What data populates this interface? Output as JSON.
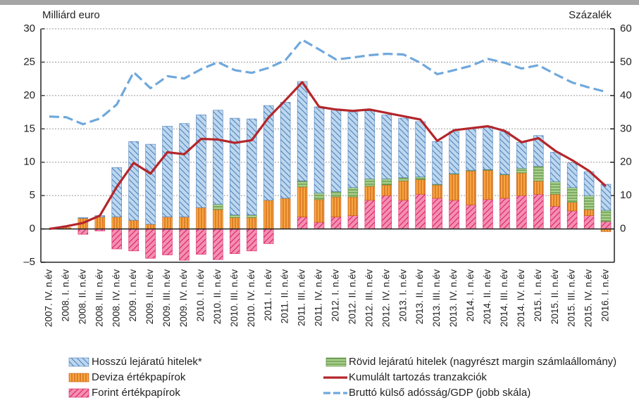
{
  "chart_data": {
    "type": "bar",
    "y_label": "Milliárd euro",
    "y2_label": "Százalék",
    "categories": [
      "2007. IV. n.év",
      "2008. I. n.év",
      "2008. II. n.év",
      "2008. III. n.év",
      "2008. IV. n.év",
      "2009. I. n.év",
      "2009. II. n.év",
      "2009. III. n.év",
      "2009. IV. n.év",
      "2010. I. n.év",
      "2010. II. n.év",
      "2010. III. n.év",
      "2010. IV. n.év",
      "2011. I. n.év",
      "2011. II. n.év",
      "2011. III. n.év",
      "2011. IV. n.év",
      "2012. I. n.év",
      "2012. II. n.év",
      "2012. III. n.év",
      "2012. IV. n.év",
      "2013. I. n.év",
      "2013. II. n.év",
      "2013. III. n.év",
      "2013. IV. n.év",
      "2014. I. n.év",
      "2014. II. n.év",
      "2014. III. n.év",
      "2014. IV. n.év",
      "2015. I. n.év",
      "2015. II. n.év",
      "2015. III. n.év",
      "2015. IV. n.év",
      "2016. I. n.év"
    ],
    "series": [
      {
        "name": "Forint értékpapírok",
        "type": "bar",
        "color": "#f48fb1",
        "values": [
          0,
          0,
          -0.8,
          -0.3,
          -3.0,
          -3.3,
          -4.4,
          -3.9,
          -4.7,
          -3.8,
          -4.6,
          -3.7,
          -3.3,
          -2.2,
          0,
          1.8,
          1.0,
          1.8,
          2.0,
          4.3,
          5.0,
          4.3,
          5.2,
          4.6,
          4.3,
          3.6,
          4.4,
          4.6,
          5.0,
          5.2,
          3.4,
          2.7,
          2.0,
          1.1
        ]
      },
      {
        "name": "Deviza értékpapírok",
        "type": "bar",
        "color": "#f7a541",
        "values": [
          0,
          0.2,
          1.6,
          1.8,
          1.8,
          1.3,
          0.7,
          1.8,
          1.8,
          3.2,
          2.9,
          1.7,
          1.7,
          4.3,
          4.6,
          4.5,
          3.4,
          3.0,
          2.8,
          2.1,
          1.6,
          2.9,
          2.2,
          2.0,
          3.9,
          5.1,
          4.4,
          3.5,
          3.4,
          2.0,
          1.8,
          1.3,
          0.9,
          -0.4
        ]
      },
      {
        "name": "Rövid lejáratú hitelek (nagyrészt margin számlaállomány)",
        "type": "bar",
        "color": "#a9d18e",
        "values": [
          0,
          0,
          0,
          0,
          0,
          0,
          0,
          0,
          0,
          0,
          0.8,
          0.4,
          0.4,
          0,
          0,
          0.9,
          1.0,
          0.8,
          1.4,
          1.1,
          0.9,
          0.5,
          0.4,
          0.1,
          0.1,
          0.1,
          0.1,
          0.1,
          0.7,
          2.2,
          1.9,
          2.2,
          2.1,
          1.7
        ]
      },
      {
        "name": "Hosszú lejáratú hitelek*",
        "type": "bar",
        "color": "#bdd7ee",
        "values": [
          0,
          0,
          0.1,
          0.2,
          7.4,
          11.8,
          12.0,
          13.6,
          14.0,
          13.9,
          14.1,
          14.5,
          14.4,
          14.2,
          14.4,
          14.9,
          12.9,
          12.4,
          11.3,
          10.2,
          9.6,
          8.9,
          8.3,
          6.4,
          6.3,
          6.2,
          6.5,
          6.4,
          3.9,
          4.6,
          4.4,
          3.7,
          3.6,
          3.9
        ]
      },
      {
        "name": "Kumulált tartozás tranzakciók",
        "type": "line",
        "color": "#b3262b",
        "values": [
          0,
          0.4,
          0.9,
          2.0,
          6.3,
          9.9,
          8.3,
          11.5,
          11.2,
          13.5,
          13.4,
          12.9,
          13.3,
          16.7,
          19.3,
          22.0,
          18.3,
          17.9,
          17.7,
          17.9,
          17.4,
          16.9,
          16.4,
          13.2,
          14.8,
          15.1,
          15.4,
          14.7,
          13.0,
          13.6,
          11.7,
          10.3,
          8.7,
          6.4
        ]
      },
      {
        "name": "Bruttó külső adósság/GDP (jobb skála)",
        "type": "line",
        "axis": "y2",
        "dashed": true,
        "color": "#6fa8dc",
        "values": [
          33.7,
          33.5,
          31.4,
          33.1,
          37.3,
          47.0,
          42.2,
          45.8,
          45.1,
          47.9,
          50.0,
          47.6,
          46.8,
          48.3,
          50.6,
          56.7,
          53.8,
          50.8,
          51.4,
          52.1,
          52.5,
          52.3,
          49.8,
          46.4,
          47.6,
          48.9,
          51.0,
          49.8,
          48.1,
          49.1,
          46.4,
          43.9,
          42.4,
          41.1
        ]
      }
    ],
    "ylim": [
      -5,
      30
    ],
    "yticks": [
      {
        "value": -5,
        "label": "–5"
      },
      0,
      5,
      10,
      15,
      20,
      25,
      30
    ],
    "y2lim": [
      -10,
      60
    ],
    "y2ticks": [
      0,
      10,
      20,
      30,
      40,
      50,
      60
    ],
    "grid": true
  }
}
